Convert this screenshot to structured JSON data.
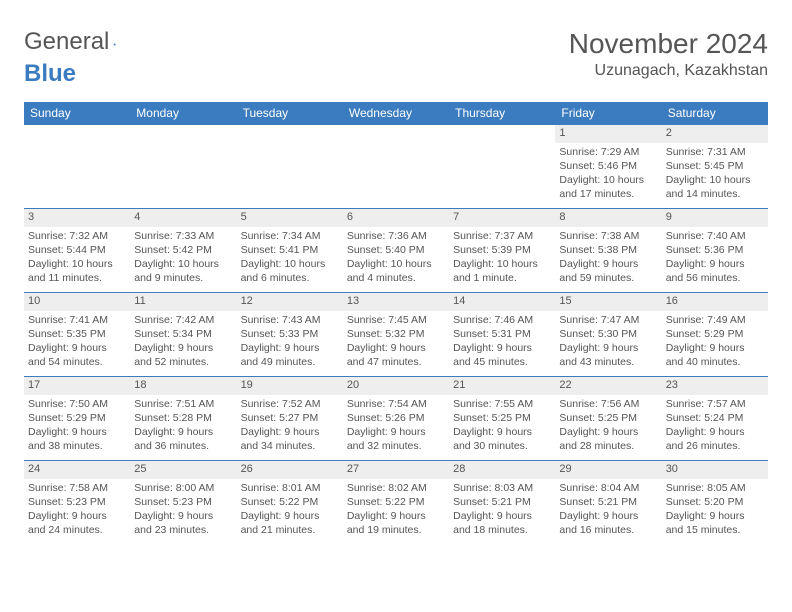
{
  "logo": {
    "text1": "General",
    "text2": "Blue"
  },
  "title": {
    "month_year": "November 2024",
    "location": "Uzunagach, Kazakhstan"
  },
  "colors": {
    "header_bg": "#3b7bbf",
    "header_text": "#ffffff",
    "daynum_bg": "#eeeeee",
    "border": "#3b7bbf",
    "text": "#555555"
  },
  "day_headers": [
    "Sunday",
    "Monday",
    "Tuesday",
    "Wednesday",
    "Thursday",
    "Friday",
    "Saturday"
  ],
  "weeks": [
    [
      null,
      null,
      null,
      null,
      null,
      {
        "n": "1",
        "sr": "Sunrise: 7:29 AM",
        "ss": "Sunset: 5:46 PM",
        "dl": "Daylight: 10 hours and 17 minutes."
      },
      {
        "n": "2",
        "sr": "Sunrise: 7:31 AM",
        "ss": "Sunset: 5:45 PM",
        "dl": "Daylight: 10 hours and 14 minutes."
      }
    ],
    [
      {
        "n": "3",
        "sr": "Sunrise: 7:32 AM",
        "ss": "Sunset: 5:44 PM",
        "dl": "Daylight: 10 hours and 11 minutes."
      },
      {
        "n": "4",
        "sr": "Sunrise: 7:33 AM",
        "ss": "Sunset: 5:42 PM",
        "dl": "Daylight: 10 hours and 9 minutes."
      },
      {
        "n": "5",
        "sr": "Sunrise: 7:34 AM",
        "ss": "Sunset: 5:41 PM",
        "dl": "Daylight: 10 hours and 6 minutes."
      },
      {
        "n": "6",
        "sr": "Sunrise: 7:36 AM",
        "ss": "Sunset: 5:40 PM",
        "dl": "Daylight: 10 hours and 4 minutes."
      },
      {
        "n": "7",
        "sr": "Sunrise: 7:37 AM",
        "ss": "Sunset: 5:39 PM",
        "dl": "Daylight: 10 hours and 1 minute."
      },
      {
        "n": "8",
        "sr": "Sunrise: 7:38 AM",
        "ss": "Sunset: 5:38 PM",
        "dl": "Daylight: 9 hours and 59 minutes."
      },
      {
        "n": "9",
        "sr": "Sunrise: 7:40 AM",
        "ss": "Sunset: 5:36 PM",
        "dl": "Daylight: 9 hours and 56 minutes."
      }
    ],
    [
      {
        "n": "10",
        "sr": "Sunrise: 7:41 AM",
        "ss": "Sunset: 5:35 PM",
        "dl": "Daylight: 9 hours and 54 minutes."
      },
      {
        "n": "11",
        "sr": "Sunrise: 7:42 AM",
        "ss": "Sunset: 5:34 PM",
        "dl": "Daylight: 9 hours and 52 minutes."
      },
      {
        "n": "12",
        "sr": "Sunrise: 7:43 AM",
        "ss": "Sunset: 5:33 PM",
        "dl": "Daylight: 9 hours and 49 minutes."
      },
      {
        "n": "13",
        "sr": "Sunrise: 7:45 AM",
        "ss": "Sunset: 5:32 PM",
        "dl": "Daylight: 9 hours and 47 minutes."
      },
      {
        "n": "14",
        "sr": "Sunrise: 7:46 AM",
        "ss": "Sunset: 5:31 PM",
        "dl": "Daylight: 9 hours and 45 minutes."
      },
      {
        "n": "15",
        "sr": "Sunrise: 7:47 AM",
        "ss": "Sunset: 5:30 PM",
        "dl": "Daylight: 9 hours and 43 minutes."
      },
      {
        "n": "16",
        "sr": "Sunrise: 7:49 AM",
        "ss": "Sunset: 5:29 PM",
        "dl": "Daylight: 9 hours and 40 minutes."
      }
    ],
    [
      {
        "n": "17",
        "sr": "Sunrise: 7:50 AM",
        "ss": "Sunset: 5:29 PM",
        "dl": "Daylight: 9 hours and 38 minutes."
      },
      {
        "n": "18",
        "sr": "Sunrise: 7:51 AM",
        "ss": "Sunset: 5:28 PM",
        "dl": "Daylight: 9 hours and 36 minutes."
      },
      {
        "n": "19",
        "sr": "Sunrise: 7:52 AM",
        "ss": "Sunset: 5:27 PM",
        "dl": "Daylight: 9 hours and 34 minutes."
      },
      {
        "n": "20",
        "sr": "Sunrise: 7:54 AM",
        "ss": "Sunset: 5:26 PM",
        "dl": "Daylight: 9 hours and 32 minutes."
      },
      {
        "n": "21",
        "sr": "Sunrise: 7:55 AM",
        "ss": "Sunset: 5:25 PM",
        "dl": "Daylight: 9 hours and 30 minutes."
      },
      {
        "n": "22",
        "sr": "Sunrise: 7:56 AM",
        "ss": "Sunset: 5:25 PM",
        "dl": "Daylight: 9 hours and 28 minutes."
      },
      {
        "n": "23",
        "sr": "Sunrise: 7:57 AM",
        "ss": "Sunset: 5:24 PM",
        "dl": "Daylight: 9 hours and 26 minutes."
      }
    ],
    [
      {
        "n": "24",
        "sr": "Sunrise: 7:58 AM",
        "ss": "Sunset: 5:23 PM",
        "dl": "Daylight: 9 hours and 24 minutes."
      },
      {
        "n": "25",
        "sr": "Sunrise: 8:00 AM",
        "ss": "Sunset: 5:23 PM",
        "dl": "Daylight: 9 hours and 23 minutes."
      },
      {
        "n": "26",
        "sr": "Sunrise: 8:01 AM",
        "ss": "Sunset: 5:22 PM",
        "dl": "Daylight: 9 hours and 21 minutes."
      },
      {
        "n": "27",
        "sr": "Sunrise: 8:02 AM",
        "ss": "Sunset: 5:22 PM",
        "dl": "Daylight: 9 hours and 19 minutes."
      },
      {
        "n": "28",
        "sr": "Sunrise: 8:03 AM",
        "ss": "Sunset: 5:21 PM",
        "dl": "Daylight: 9 hours and 18 minutes."
      },
      {
        "n": "29",
        "sr": "Sunrise: 8:04 AM",
        "ss": "Sunset: 5:21 PM",
        "dl": "Daylight: 9 hours and 16 minutes."
      },
      {
        "n": "30",
        "sr": "Sunrise: 8:05 AM",
        "ss": "Sunset: 5:20 PM",
        "dl": "Daylight: 9 hours and 15 minutes."
      }
    ]
  ]
}
